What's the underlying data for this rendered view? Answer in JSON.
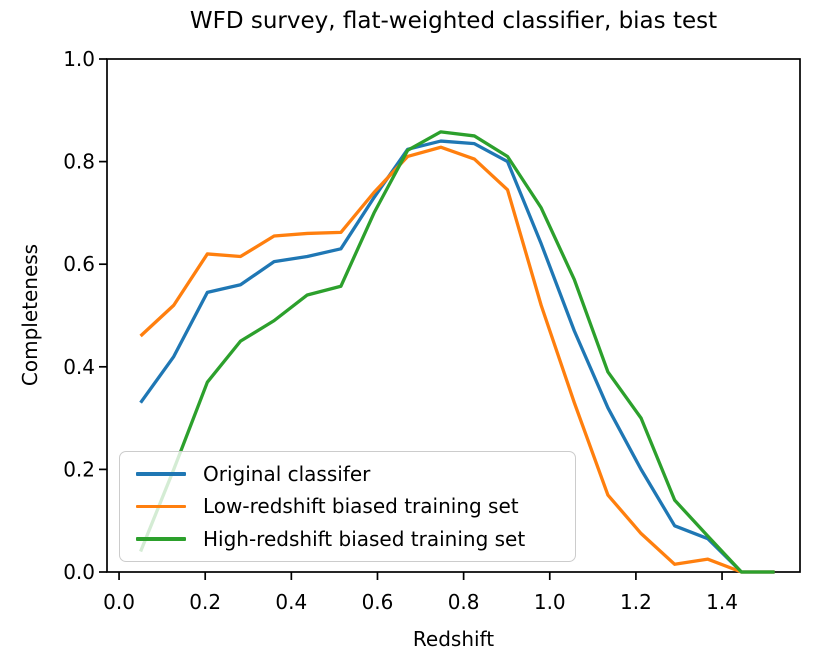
{
  "figure": {
    "background": "#ffffff",
    "axis_color": "#000000",
    "legend_border_color": "#cccccc"
  },
  "chart_data": {
    "type": "line",
    "title": "WFD survey, flat-weighted classifier, bias test",
    "xlabel": "Redshift",
    "ylabel": "Completeness",
    "xlim": [
      -0.028,
      1.581
    ],
    "ylim": [
      0.0,
      1.0
    ],
    "grid": false,
    "legend_position": "lower left",
    "xticks": {
      "values": [
        0.0,
        0.2,
        0.4,
        0.6,
        0.8,
        1.0,
        1.2,
        1.4
      ],
      "labels": [
        "0.0",
        "0.2",
        "0.4",
        "0.6",
        "0.8",
        "1.0",
        "1.2",
        "1.4"
      ]
    },
    "yticks": {
      "values": [
        0.0,
        0.2,
        0.4,
        0.6,
        0.8,
        1.0
      ],
      "labels": [
        "0.0",
        "0.2",
        "0.4",
        "0.6",
        "0.8",
        "1.0"
      ]
    },
    "x": [
      0.05,
      0.127,
      0.205,
      0.282,
      0.36,
      0.437,
      0.515,
      0.592,
      0.67,
      0.747,
      0.825,
      0.902,
      0.98,
      1.057,
      1.135,
      1.212,
      1.29,
      1.367,
      1.445,
      1.522
    ],
    "series": [
      {
        "name": "Original classifer",
        "color": "#1f77b4",
        "values": [
          0.33,
          0.42,
          0.545,
          0.56,
          0.605,
          0.615,
          0.63,
          0.73,
          0.824,
          0.84,
          0.835,
          0.8,
          0.64,
          0.47,
          0.32,
          0.2,
          0.09,
          0.065,
          0.0,
          0.0
        ]
      },
      {
        "name": "Low-redshift biased training set",
        "color": "#ff7f0e",
        "values": [
          0.46,
          0.52,
          0.62,
          0.615,
          0.655,
          0.66,
          0.662,
          0.74,
          0.81,
          0.828,
          0.805,
          0.745,
          0.52,
          0.33,
          0.15,
          0.075,
          0.015,
          0.025,
          0.0,
          0.0
        ]
      },
      {
        "name": "High-redshift biased training set",
        "color": "#2ca02c",
        "values": [
          0.04,
          0.2,
          0.37,
          0.45,
          0.49,
          0.54,
          0.557,
          0.7,
          0.822,
          0.858,
          0.85,
          0.81,
          0.71,
          0.57,
          0.39,
          0.3,
          0.14,
          0.07,
          0.0,
          0.0
        ]
      }
    ]
  }
}
